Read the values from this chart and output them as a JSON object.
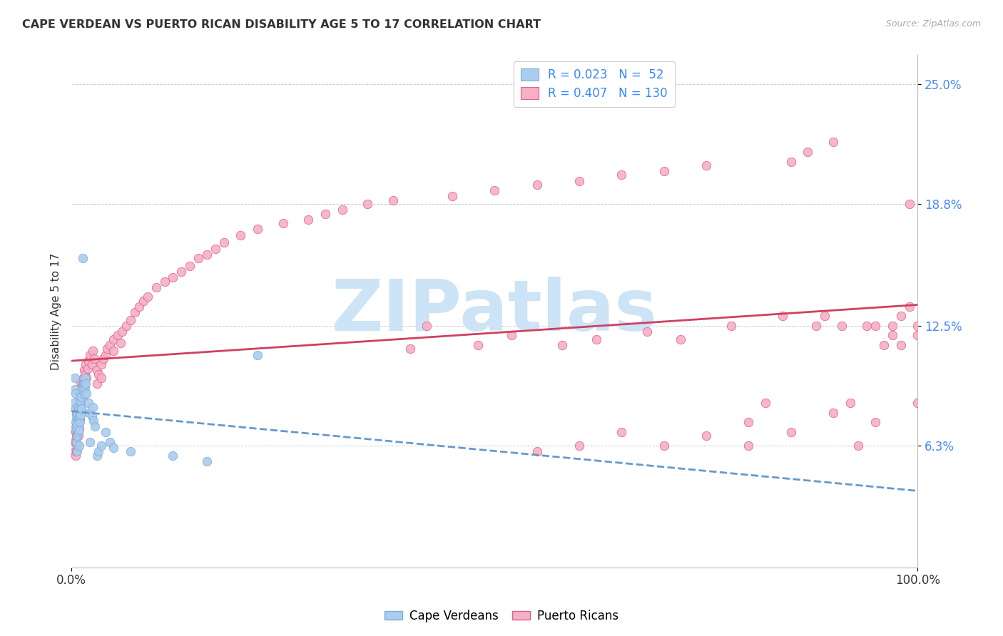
{
  "title": "CAPE VERDEAN VS PUERTO RICAN DISABILITY AGE 5 TO 17 CORRELATION CHART",
  "source": "Source: ZipAtlas.com",
  "ylabel": "Disability Age 5 to 17",
  "cv_R": "0.023",
  "cv_N": "52",
  "pr_R": "0.407",
  "pr_N": "130",
  "cv_color": "#aaccee",
  "pr_color": "#f5b0c8",
  "cv_edge_color": "#7aaed6",
  "pr_edge_color": "#e06080",
  "cv_line_color": "#6699cc",
  "pr_line_color": "#d04060",
  "legend_text_color": "#3388ff",
  "watermark": "ZIPatlas",
  "watermark_color": "#cce4f5",
  "background_color": "#ffffff",
  "grid_color": "#cccccc",
  "yticks": [
    0.063,
    0.125,
    0.188,
    0.25
  ],
  "ytick_labels": [
    "6.3%",
    "12.5%",
    "18.8%",
    "25.0%"
  ],
  "xticks": [
    0.0,
    1.0
  ],
  "xtick_labels": [
    "0.0%",
    "100.0%"
  ],
  "xlim": [
    0.0,
    1.0
  ],
  "ylim": [
    0.0,
    0.265
  ],
  "cv_scatter_x": [
    0.003,
    0.004,
    0.004,
    0.005,
    0.005,
    0.005,
    0.006,
    0.006,
    0.006,
    0.007,
    0.007,
    0.007,
    0.007,
    0.008,
    0.008,
    0.008,
    0.009,
    0.009,
    0.009,
    0.01,
    0.01,
    0.01,
    0.011,
    0.011,
    0.012,
    0.012,
    0.013,
    0.013,
    0.014,
    0.015,
    0.015,
    0.016,
    0.016,
    0.017,
    0.018,
    0.02,
    0.021,
    0.022,
    0.024,
    0.025,
    0.026,
    0.028,
    0.03,
    0.032,
    0.035,
    0.04,
    0.045,
    0.05,
    0.07,
    0.12,
    0.16,
    0.22
  ],
  "cv_scatter_y": [
    0.085,
    0.092,
    0.098,
    0.075,
    0.082,
    0.09,
    0.065,
    0.072,
    0.078,
    0.06,
    0.068,
    0.074,
    0.08,
    0.07,
    0.077,
    0.083,
    0.063,
    0.071,
    0.078,
    0.075,
    0.082,
    0.088,
    0.079,
    0.086,
    0.082,
    0.088,
    0.16,
    0.092,
    0.095,
    0.09,
    0.095,
    0.093,
    0.098,
    0.095,
    0.09,
    0.085,
    0.08,
    0.065,
    0.078,
    0.083,
    0.076,
    0.073,
    0.058,
    0.06,
    0.063,
    0.07,
    0.065,
    0.062,
    0.06,
    0.058,
    0.055,
    0.11
  ],
  "pr_scatter_x": [
    0.003,
    0.004,
    0.004,
    0.005,
    0.005,
    0.005,
    0.006,
    0.006,
    0.006,
    0.006,
    0.007,
    0.007,
    0.007,
    0.008,
    0.008,
    0.008,
    0.009,
    0.009,
    0.009,
    0.01,
    0.01,
    0.01,
    0.011,
    0.011,
    0.011,
    0.012,
    0.012,
    0.013,
    0.013,
    0.014,
    0.014,
    0.015,
    0.015,
    0.016,
    0.017,
    0.018,
    0.019,
    0.02,
    0.022,
    0.024,
    0.025,
    0.027,
    0.03,
    0.03,
    0.032,
    0.035,
    0.035,
    0.038,
    0.04,
    0.042,
    0.045,
    0.05,
    0.05,
    0.055,
    0.058,
    0.06,
    0.065,
    0.07,
    0.075,
    0.08,
    0.085,
    0.09,
    0.1,
    0.11,
    0.12,
    0.13,
    0.14,
    0.15,
    0.16,
    0.17,
    0.18,
    0.2,
    0.22,
    0.25,
    0.28,
    0.3,
    0.32,
    0.35,
    0.38,
    0.4,
    0.42,
    0.45,
    0.48,
    0.5,
    0.52,
    0.55,
    0.58,
    0.6,
    0.62,
    0.65,
    0.68,
    0.7,
    0.72,
    0.75,
    0.78,
    0.8,
    0.82,
    0.84,
    0.85,
    0.87,
    0.88,
    0.89,
    0.9,
    0.91,
    0.92,
    0.93,
    0.94,
    0.95,
    0.96,
    0.97,
    0.97,
    0.98,
    0.98,
    0.99,
    0.99,
    1.0,
    1.0,
    0.55,
    0.6,
    0.65,
    0.7,
    0.75,
    0.8,
    0.85,
    0.9,
    0.95,
    1.0
  ],
  "pr_scatter_y": [
    0.065,
    0.06,
    0.072,
    0.058,
    0.065,
    0.07,
    0.06,
    0.068,
    0.075,
    0.08,
    0.063,
    0.07,
    0.077,
    0.068,
    0.075,
    0.082,
    0.072,
    0.079,
    0.085,
    0.077,
    0.084,
    0.09,
    0.083,
    0.09,
    0.096,
    0.087,
    0.093,
    0.088,
    0.095,
    0.092,
    0.098,
    0.095,
    0.102,
    0.1,
    0.105,
    0.098,
    0.103,
    0.107,
    0.11,
    0.105,
    0.112,
    0.108,
    0.095,
    0.102,
    0.1,
    0.098,
    0.105,
    0.108,
    0.11,
    0.113,
    0.115,
    0.112,
    0.118,
    0.12,
    0.116,
    0.122,
    0.125,
    0.128,
    0.132,
    0.135,
    0.138,
    0.14,
    0.145,
    0.148,
    0.15,
    0.153,
    0.156,
    0.16,
    0.162,
    0.165,
    0.168,
    0.172,
    0.175,
    0.178,
    0.18,
    0.183,
    0.185,
    0.188,
    0.19,
    0.113,
    0.125,
    0.192,
    0.115,
    0.195,
    0.12,
    0.198,
    0.115,
    0.2,
    0.118,
    0.203,
    0.122,
    0.205,
    0.118,
    0.208,
    0.125,
    0.063,
    0.085,
    0.13,
    0.21,
    0.215,
    0.125,
    0.13,
    0.22,
    0.125,
    0.085,
    0.063,
    0.125,
    0.125,
    0.115,
    0.125,
    0.12,
    0.13,
    0.115,
    0.188,
    0.135,
    0.125,
    0.12,
    0.06,
    0.063,
    0.07,
    0.063,
    0.068,
    0.075,
    0.07,
    0.08,
    0.075,
    0.085
  ]
}
